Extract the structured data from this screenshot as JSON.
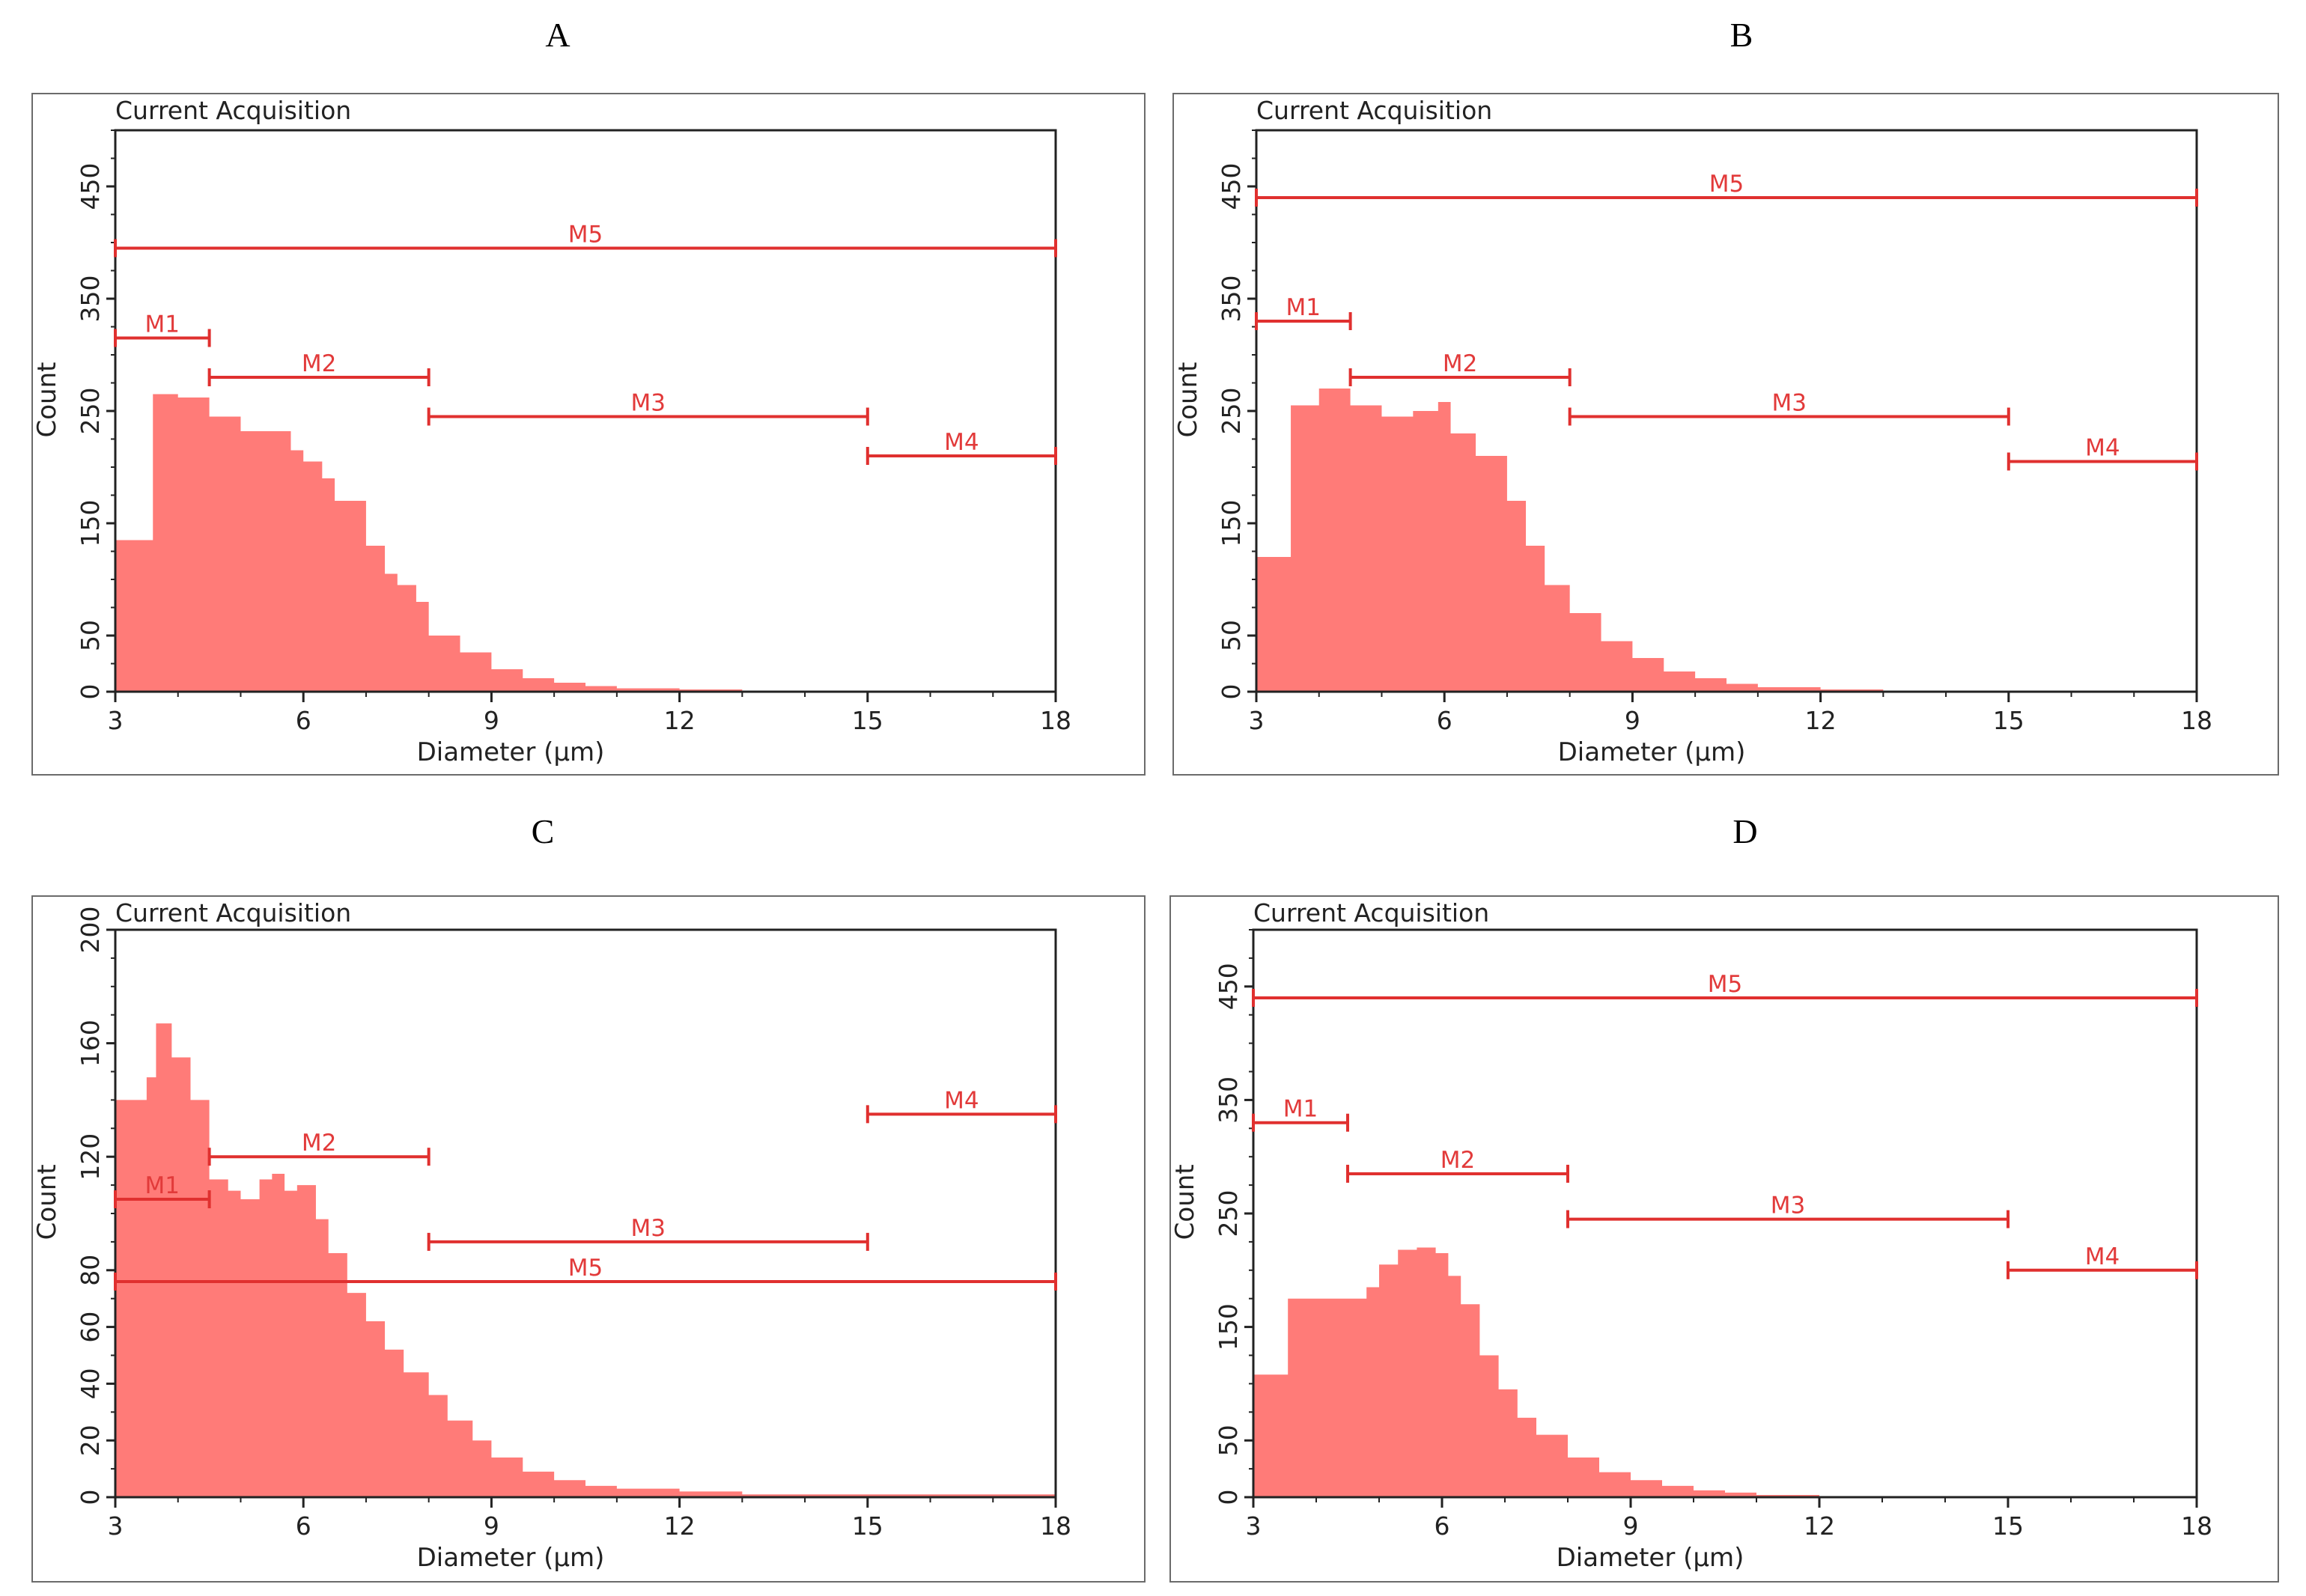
{
  "colors": {
    "fill": "#ff7b78",
    "marker": "#e0302f",
    "axis": "#222222",
    "frame": "#6b6b6b"
  },
  "chart_data": [
    {
      "panel": "A",
      "type": "histogram",
      "title": "Current Acquisition",
      "xlabel": "Diameter (µm)",
      "ylabel": "Count",
      "xlim": [
        3,
        18
      ],
      "ylim": [
        0,
        500
      ],
      "xticks": [
        3,
        6,
        9,
        12,
        15,
        18
      ],
      "yticks": [
        0,
        50,
        150,
        250,
        350,
        450
      ],
      "histogram": {
        "x": [
          3.0,
          3.5,
          3.6,
          4.0,
          4.5,
          5.0,
          5.5,
          5.8,
          6.0,
          6.3,
          6.5,
          7.0,
          7.3,
          7.5,
          7.8,
          8.0,
          8.5,
          9.0,
          9.5,
          10.0,
          10.5,
          11.0,
          12.0,
          13.0,
          18.0
        ],
        "y": [
          135,
          135,
          265,
          262,
          245,
          232,
          232,
          215,
          205,
          190,
          170,
          130,
          105,
          95,
          80,
          50,
          35,
          20,
          12,
          8,
          5,
          3,
          2,
          1,
          0
        ]
      },
      "markers": [
        {
          "label": "M1",
          "x1": 3.0,
          "x2": 4.5,
          "y": 315
        },
        {
          "label": "M2",
          "x1": 4.5,
          "x2": 8.0,
          "y": 280
        },
        {
          "label": "M3",
          "x1": 8.0,
          "x2": 15.0,
          "y": 245
        },
        {
          "label": "M4",
          "x1": 15.0,
          "x2": 18.0,
          "y": 210
        },
        {
          "label": "M5",
          "x1": 3.0,
          "x2": 18.0,
          "y": 395
        }
      ]
    },
    {
      "panel": "B",
      "type": "histogram",
      "title": "Current Acquisition",
      "xlabel": "Diameter (µm)",
      "ylabel": "Count",
      "xlim": [
        3,
        18
      ],
      "ylim": [
        0,
        500
      ],
      "xticks": [
        3,
        6,
        9,
        12,
        15,
        18
      ],
      "yticks": [
        0,
        50,
        150,
        250,
        350,
        450
      ],
      "histogram": {
        "x": [
          3.0,
          3.5,
          3.55,
          4.0,
          4.5,
          5.0,
          5.5,
          5.9,
          6.1,
          6.5,
          7.0,
          7.3,
          7.6,
          8.0,
          8.5,
          9.0,
          9.5,
          10.0,
          10.5,
          11.0,
          12.0,
          13.0,
          18.0
        ],
        "y": [
          120,
          120,
          255,
          270,
          255,
          245,
          250,
          258,
          230,
          210,
          170,
          130,
          95,
          70,
          45,
          30,
          18,
          12,
          7,
          4,
          2,
          1,
          0
        ]
      },
      "markers": [
        {
          "label": "M1",
          "x1": 3.0,
          "x2": 4.5,
          "y": 330
        },
        {
          "label": "M2",
          "x1": 4.5,
          "x2": 8.0,
          "y": 280
        },
        {
          "label": "M3",
          "x1": 8.0,
          "x2": 15.0,
          "y": 245
        },
        {
          "label": "M4",
          "x1": 15.0,
          "x2": 18.0,
          "y": 205
        },
        {
          "label": "M5",
          "x1": 3.0,
          "x2": 18.0,
          "y": 440
        }
      ]
    },
    {
      "panel": "C",
      "type": "histogram",
      "title": "Current Acquisition",
      "xlabel": "Diameter (µm)",
      "ylabel": "Count",
      "xlim": [
        3,
        18
      ],
      "ylim": [
        0,
        200
      ],
      "xticks": [
        3,
        6,
        9,
        12,
        15,
        18
      ],
      "yticks": [
        0,
        20,
        40,
        60,
        80,
        120,
        160,
        200
      ],
      "histogram": {
        "x": [
          3.0,
          3.4,
          3.5,
          3.65,
          3.9,
          4.2,
          4.5,
          4.8,
          5.0,
          5.3,
          5.5,
          5.7,
          5.9,
          6.2,
          6.4,
          6.7,
          7.0,
          7.3,
          7.6,
          8.0,
          8.3,
          8.7,
          9.0,
          9.5,
          10.0,
          10.5,
          11.0,
          12.0,
          13.0,
          14.5,
          18.0
        ],
        "y": [
          140,
          140,
          148,
          167,
          155,
          140,
          112,
          108,
          105,
          112,
          114,
          108,
          110,
          98,
          86,
          72,
          62,
          52,
          44,
          36,
          27,
          20,
          14,
          9,
          6,
          4,
          3,
          2,
          1,
          1,
          0
        ]
      },
      "markers": [
        {
          "label": "M1",
          "x1": 3.0,
          "x2": 4.5,
          "y": 105
        },
        {
          "label": "M2",
          "x1": 4.5,
          "x2": 8.0,
          "y": 120
        },
        {
          "label": "M3",
          "x1": 8.0,
          "x2": 15.0,
          "y": 90
        },
        {
          "label": "M4",
          "x1": 15.0,
          "x2": 18.0,
          "y": 135
        },
        {
          "label": "M5",
          "x1": 3.0,
          "x2": 18.0,
          "y": 76
        }
      ]
    },
    {
      "panel": "D",
      "type": "histogram",
      "title": "Current Acquisition",
      "xlabel": "Diameter (µm)",
      "ylabel": "Count",
      "xlim": [
        3,
        18
      ],
      "ylim": [
        0,
        500
      ],
      "xticks": [
        3,
        6,
        9,
        12,
        15,
        18
      ],
      "yticks": [
        0,
        50,
        150,
        250,
        350,
        450
      ],
      "histogram": {
        "x": [
          3.0,
          3.5,
          3.55,
          4.0,
          4.5,
          4.8,
          5.0,
          5.3,
          5.6,
          5.9,
          6.1,
          6.3,
          6.6,
          6.9,
          7.2,
          7.5,
          8.0,
          8.5,
          9.0,
          9.5,
          10.0,
          10.5,
          11.0,
          12.0,
          13.0,
          18.0
        ],
        "y": [
          108,
          108,
          175,
          175,
          175,
          185,
          205,
          218,
          220,
          215,
          195,
          170,
          125,
          95,
          70,
          55,
          35,
          22,
          15,
          10,
          6,
          4,
          2,
          1,
          1,
          0
        ]
      },
      "markers": [
        {
          "label": "M1",
          "x1": 3.0,
          "x2": 4.5,
          "y": 330
        },
        {
          "label": "M2",
          "x1": 4.5,
          "x2": 8.0,
          "y": 285
        },
        {
          "label": "M3",
          "x1": 8.0,
          "x2": 15.0,
          "y": 245
        },
        {
          "label": "M4",
          "x1": 15.0,
          "x2": 18.0,
          "y": 200
        },
        {
          "label": "M5",
          "x1": 3.0,
          "x2": 18.0,
          "y": 440
        }
      ]
    }
  ]
}
